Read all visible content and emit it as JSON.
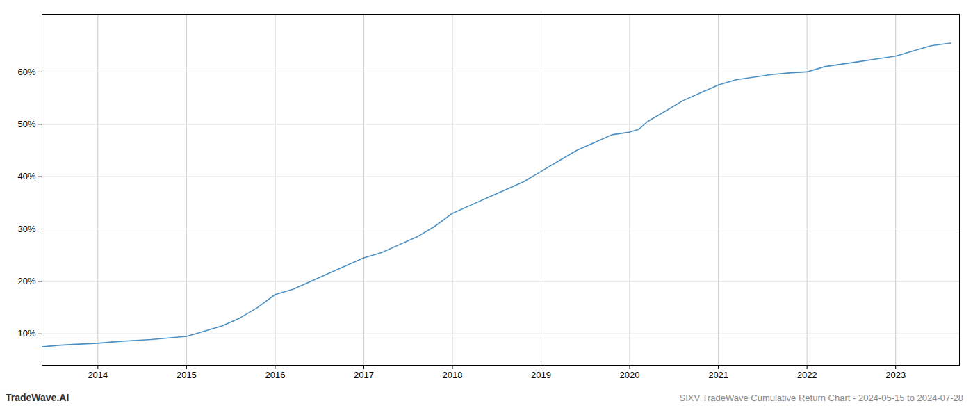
{
  "chart_data": {
    "type": "line",
    "title": "SIXV TradeWave Cumulative Return Chart - 2024-05-15 to 2024-07-28",
    "annotations": [
      "TradeWave.AI"
    ],
    "x": [
      2013.37,
      2013.55,
      2013.75,
      2014.0,
      2014.2,
      2014.4,
      2014.6,
      2014.8,
      2015.0,
      2015.1,
      2015.2,
      2015.4,
      2015.6,
      2015.8,
      2016.0,
      2016.2,
      2016.4,
      2016.6,
      2016.8,
      2017.0,
      2017.2,
      2017.4,
      2017.6,
      2017.8,
      2018.0,
      2018.2,
      2018.4,
      2018.6,
      2018.8,
      2019.0,
      2019.2,
      2019.4,
      2019.6,
      2019.8,
      2020.0,
      2020.1,
      2020.2,
      2020.4,
      2020.6,
      2020.8,
      2021.0,
      2021.1,
      2021.2,
      2021.4,
      2021.6,
      2021.8,
      2022.0,
      2022.2,
      2022.4,
      2022.6,
      2022.8,
      2023.0,
      2023.2,
      2023.4,
      2023.62
    ],
    "values": [
      7.5,
      7.8,
      8.0,
      8.2,
      8.5,
      8.7,
      8.9,
      9.2,
      9.5,
      10.0,
      10.5,
      11.5,
      13.0,
      15.0,
      17.5,
      18.5,
      20.0,
      21.5,
      23.0,
      24.5,
      25.5,
      27.0,
      28.5,
      30.5,
      33.0,
      34.5,
      36.0,
      37.5,
      39.0,
      41.0,
      43.0,
      45.0,
      46.5,
      48.0,
      48.5,
      49.0,
      50.5,
      52.5,
      54.5,
      56.0,
      57.5,
      58.0,
      58.5,
      59.0,
      59.5,
      59.8,
      60.0,
      61.0,
      61.5,
      62.0,
      62.5,
      63.0,
      64.0,
      65.0,
      65.5
    ],
    "color": "#4a90c4",
    "xlim": [
      2013.37,
      2023.72
    ],
    "ylim": [
      4.0,
      71.0
    ],
    "xticks": [
      2014,
      2015,
      2016,
      2017,
      2018,
      2019,
      2020,
      2021,
      2022,
      2023
    ],
    "yticks": [
      {
        "value": 10,
        "label": "10%"
      },
      {
        "value": 20,
        "label": "20%"
      },
      {
        "value": 30,
        "label": "30%"
      },
      {
        "value": 40,
        "label": "40%"
      },
      {
        "value": 50,
        "label": "50%"
      },
      {
        "value": 60,
        "label": "60%"
      }
    ],
    "grid": true
  }
}
